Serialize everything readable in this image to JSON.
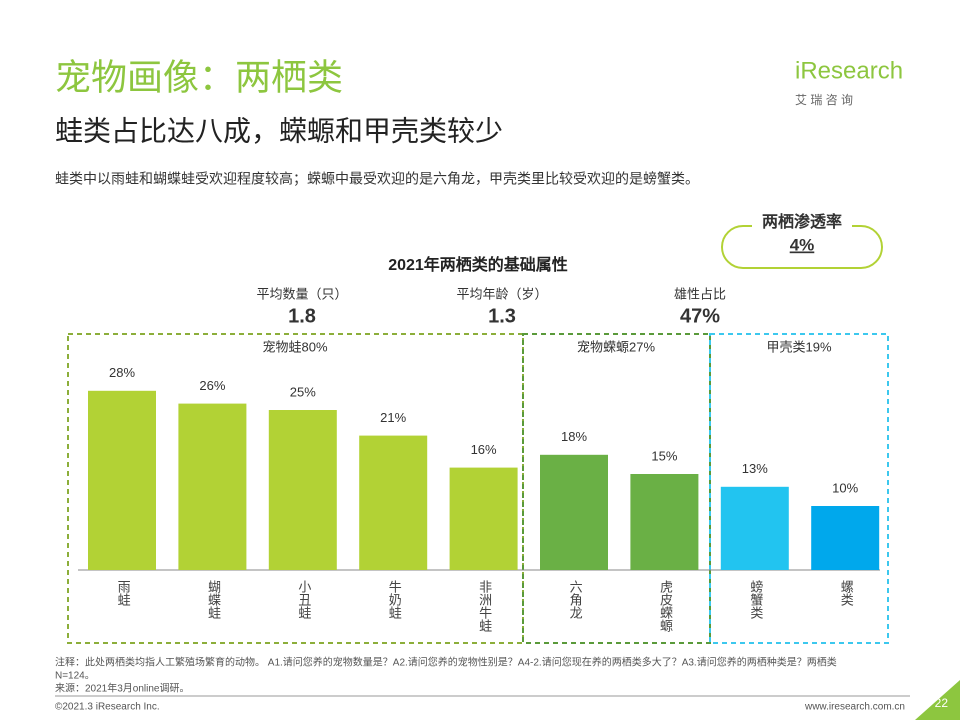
{
  "header": {
    "title": "宠物画像：两栖类",
    "subtitle": "蛙类占比达八成，蝾螈和甲壳类较少",
    "description": "蛙类中以雨蛙和蝴蝶蛙受欢迎程度较高；蝾螈中最受欢迎的是六角龙，甲壳类里比较受欢迎的是螃蟹类。",
    "logo": "iResearch",
    "logo_sub": "艾 瑞 咨 询"
  },
  "badge": {
    "label": "两栖渗透率",
    "value": "4%"
  },
  "stats": [
    {
      "label": "平均数量（只）",
      "value": "1.8"
    },
    {
      "label": "平均年龄（岁）",
      "value": "1.3"
    },
    {
      "label": "雄性占比",
      "value": "47%"
    }
  ],
  "groups": [
    "宠物蛙80%",
    "宠物蝾螈27%",
    "甲壳类19%"
  ],
  "chart_data": {
    "type": "bar",
    "title": "2021年两栖类的基础属性",
    "categories": [
      "雨蛙",
      "蝴蝶蛙",
      "小丑蛙",
      "牛奶蛙",
      "非洲牛蛙",
      "六角龙",
      "虎皮蝾螈",
      "螃蟹类",
      "螺类"
    ],
    "values": [
      28,
      26,
      25,
      21,
      16,
      18,
      15,
      13,
      10
    ],
    "value_labels": [
      "28%",
      "26%",
      "25%",
      "21%",
      "16%",
      "18%",
      "15%",
      "13%",
      "10%"
    ],
    "colors": [
      "#b2d235",
      "#b2d235",
      "#b2d235",
      "#b2d235",
      "#b2d235",
      "#6ab045",
      "#6ab045",
      "#22c4f0",
      "#00a8ec"
    ]
  },
  "footer": {
    "note": "注释：此处两栖类均指人工繁殖场繁育的动物。 A1.请问您养的宠物数量是？A2.请问您养的宠物性别是？A4-2.请问您现在养的两栖类多大了？A3.请问您养的两栖种类是？两栖类",
    "n": "N=124。",
    "source": "来源：2021年3月online调研。",
    "copyright": "©2021.3 iResearch Inc.",
    "url": "www.iresearch.com.cn",
    "page": "22"
  }
}
